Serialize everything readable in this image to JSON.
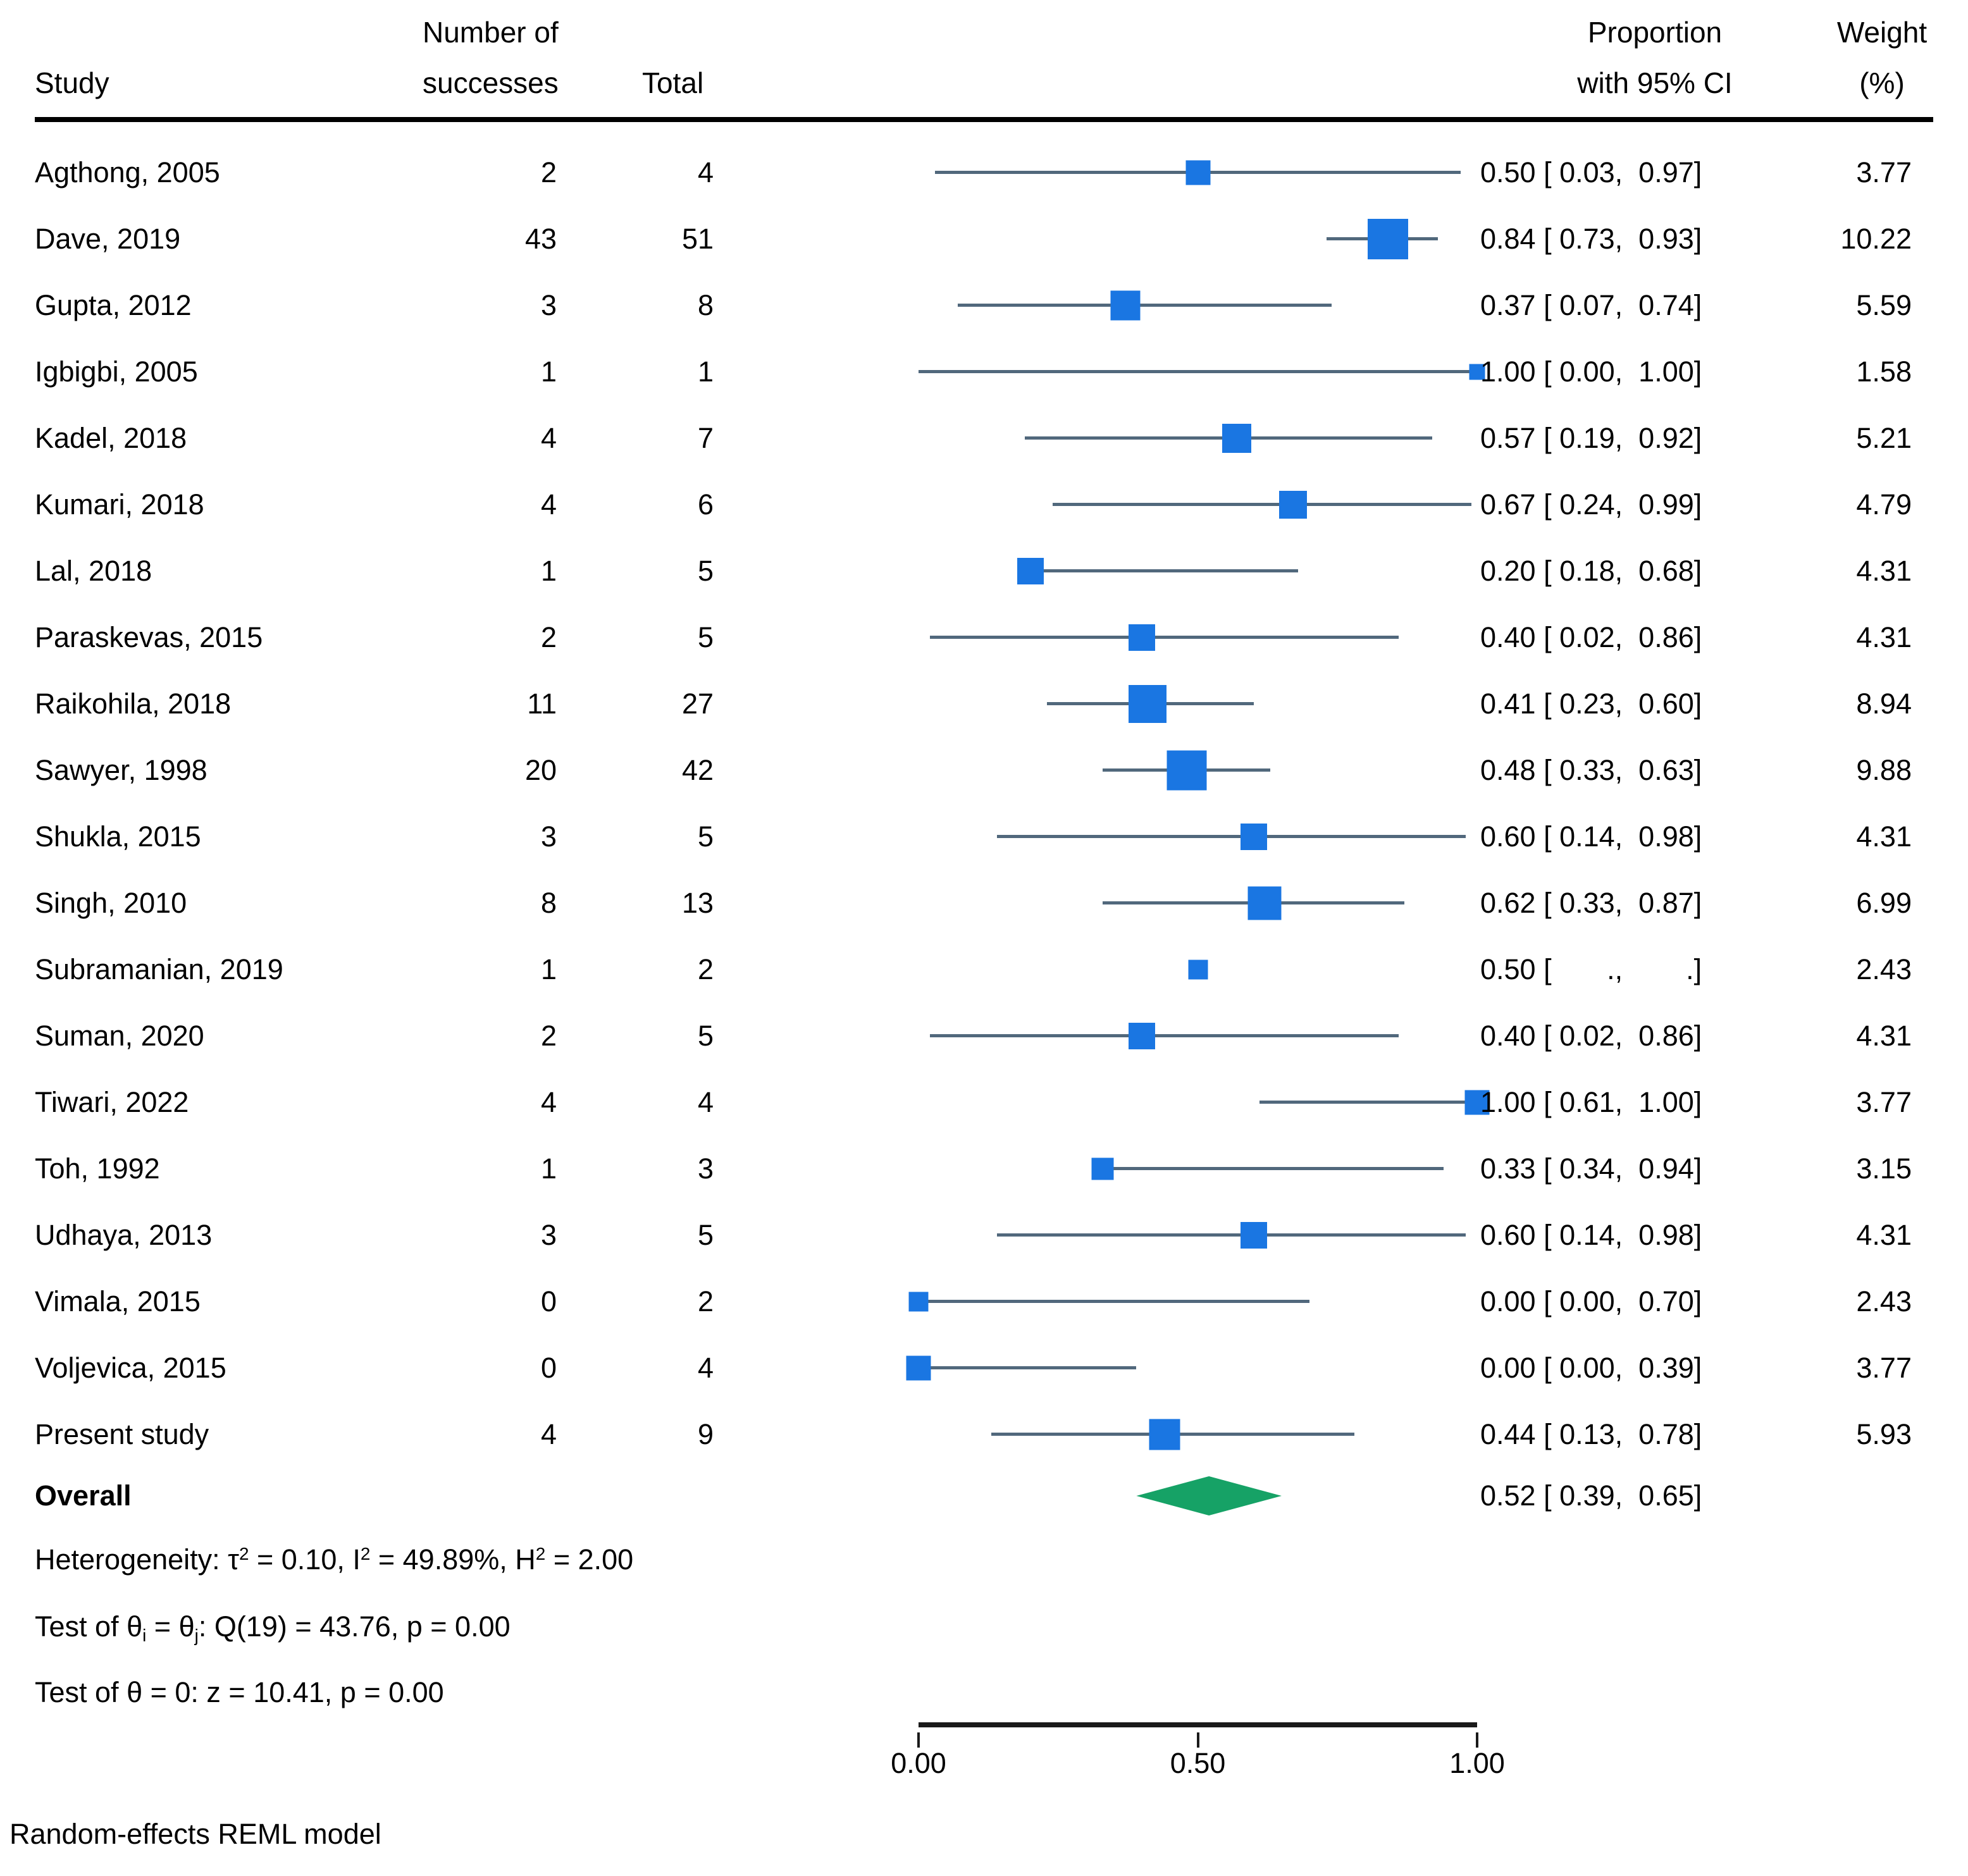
{
  "header": {
    "study": "Study",
    "successes_line1": "Number of",
    "successes_line2": "successes",
    "total": "Total",
    "ci_line1": "Proportion",
    "ci_line2": "with 95% CI",
    "weight_line1": "Weight",
    "weight_line2": "(%)"
  },
  "colors": {
    "marker_blue": "#1a76e2",
    "ci_line": "#51687c",
    "diamond_green": "#16a266",
    "axis": "#1a1a1a",
    "text": "#000000"
  },
  "chart_data": {
    "type": "scatter",
    "variant": "forest-plot",
    "title": "",
    "xlabel": "",
    "xlim": [
      0,
      1
    ],
    "x_ticks": [
      {
        "label": "0.00",
        "pos": 0
      },
      {
        "label": "0.50",
        "pos": 0.5
      },
      {
        "label": "1.00",
        "pos": 1
      }
    ],
    "studies": [
      {
        "study": "Agthong, 2005",
        "successes": 2,
        "total": 4,
        "proportion": 0.5,
        "ci_low": 0.03,
        "ci_high": 0.97,
        "weight_pct": 3.77,
        "ci_text": "0.50 [ 0.03,  0.97]",
        "weight_text": "3.77"
      },
      {
        "study": "Dave, 2019",
        "successes": 43,
        "total": 51,
        "proportion": 0.84,
        "ci_low": 0.73,
        "ci_high": 0.93,
        "weight_pct": 10.22,
        "ci_text": "0.84 [ 0.73,  0.93]",
        "weight_text": "10.22"
      },
      {
        "study": "Gupta, 2012",
        "successes": 3,
        "total": 8,
        "proportion": 0.37,
        "ci_low": 0.07,
        "ci_high": 0.74,
        "weight_pct": 5.59,
        "ci_text": "0.37 [ 0.07,  0.74]",
        "weight_text": "5.59"
      },
      {
        "study": "Igbigbi, 2005",
        "successes": 1,
        "total": 1,
        "proportion": 1.0,
        "ci_low": 0.0,
        "ci_high": 1.0,
        "weight_pct": 1.58,
        "ci_text": "1.00 [ 0.00,  1.00]",
        "weight_text": "1.58"
      },
      {
        "study": "Kadel, 2018",
        "successes": 4,
        "total": 7,
        "proportion": 0.57,
        "ci_low": 0.19,
        "ci_high": 0.92,
        "weight_pct": 5.21,
        "ci_text": "0.57 [ 0.19,  0.92]",
        "weight_text": "5.21"
      },
      {
        "study": "Kumari, 2018",
        "successes": 4,
        "total": 6,
        "proportion": 0.67,
        "ci_low": 0.24,
        "ci_high": 0.99,
        "weight_pct": 4.79,
        "ci_text": "0.67 [ 0.24,  0.99]",
        "weight_text": "4.79"
      },
      {
        "study": "Lal, 2018",
        "successes": 1,
        "total": 5,
        "proportion": 0.2,
        "ci_low": 0.18,
        "ci_high": 0.68,
        "weight_pct": 4.31,
        "ci_text": "0.20 [ 0.18,  0.68]",
        "weight_text": "4.31"
      },
      {
        "study": "Paraskevas, 2015",
        "successes": 2,
        "total": 5,
        "proportion": 0.4,
        "ci_low": 0.02,
        "ci_high": 0.86,
        "weight_pct": 4.31,
        "ci_text": "0.40 [ 0.02,  0.86]",
        "weight_text": "4.31"
      },
      {
        "study": "Raikohila, 2018",
        "successes": 11,
        "total": 27,
        "proportion": 0.41,
        "ci_low": 0.23,
        "ci_high": 0.6,
        "weight_pct": 8.94,
        "ci_text": "0.41 [ 0.23,  0.60]",
        "weight_text": "8.94"
      },
      {
        "study": "Sawyer, 1998",
        "successes": 20,
        "total": 42,
        "proportion": 0.48,
        "ci_low": 0.33,
        "ci_high": 0.63,
        "weight_pct": 9.88,
        "ci_text": "0.48 [ 0.33,  0.63]",
        "weight_text": "9.88"
      },
      {
        "study": "Shukla, 2015",
        "successes": 3,
        "total": 5,
        "proportion": 0.6,
        "ci_low": 0.14,
        "ci_high": 0.98,
        "weight_pct": 4.31,
        "ci_text": "0.60 [ 0.14,  0.98]",
        "weight_text": "4.31"
      },
      {
        "study": "Singh, 2010",
        "successes": 8,
        "total": 13,
        "proportion": 0.62,
        "ci_low": 0.33,
        "ci_high": 0.87,
        "weight_pct": 6.99,
        "ci_text": "0.62 [ 0.33,  0.87]",
        "weight_text": "6.99"
      },
      {
        "study": "Subramanian, 2019",
        "successes": 1,
        "total": 2,
        "proportion": 0.5,
        "ci_low": null,
        "ci_high": null,
        "weight_pct": 2.43,
        "ci_text": "0.50 [       .,        .]",
        "weight_text": "2.43"
      },
      {
        "study": "Suman, 2020",
        "successes": 2,
        "total": 5,
        "proportion": 0.4,
        "ci_low": 0.02,
        "ci_high": 0.86,
        "weight_pct": 4.31,
        "ci_text": "0.40 [ 0.02,  0.86]",
        "weight_text": "4.31"
      },
      {
        "study": "Tiwari, 2022",
        "successes": 4,
        "total": 4,
        "proportion": 1.0,
        "ci_low": 0.61,
        "ci_high": 1.0,
        "weight_pct": 3.77,
        "ci_text": "1.00 [ 0.61,  1.00]",
        "weight_text": "3.77"
      },
      {
        "study": "Toh, 1992",
        "successes": 1,
        "total": 3,
        "proportion": 0.33,
        "ci_low": 0.34,
        "ci_high": 0.94,
        "weight_pct": 3.15,
        "ci_text": "0.33 [ 0.34,  0.94]",
        "weight_text": "3.15"
      },
      {
        "study": "Udhaya, 2013",
        "successes": 3,
        "total": 5,
        "proportion": 0.6,
        "ci_low": 0.14,
        "ci_high": 0.98,
        "weight_pct": 4.31,
        "ci_text": "0.60 [ 0.14,  0.98]",
        "weight_text": "4.31"
      },
      {
        "study": "Vimala, 2015",
        "successes": 0,
        "total": 2,
        "proportion": 0.0,
        "ci_low": 0.0,
        "ci_high": 0.7,
        "weight_pct": 2.43,
        "ci_text": "0.00 [ 0.00,  0.70]",
        "weight_text": "2.43"
      },
      {
        "study": "Voljevica, 2015",
        "successes": 0,
        "total": 4,
        "proportion": 0.0,
        "ci_low": 0.0,
        "ci_high": 0.39,
        "weight_pct": 3.77,
        "ci_text": "0.00 [ 0.00,  0.39]",
        "weight_text": "3.77"
      },
      {
        "study": "Present study",
        "successes": 4,
        "total": 9,
        "proportion": 0.44,
        "ci_low": 0.13,
        "ci_high": 0.78,
        "weight_pct": 5.93,
        "ci_text": "0.44 [ 0.13,  0.78]",
        "weight_text": "5.93"
      }
    ],
    "overall": {
      "label": "Overall",
      "proportion": 0.52,
      "ci_low": 0.39,
      "ci_high": 0.65,
      "ci_text": "0.52 [ 0.39,  0.65]"
    },
    "legend": null,
    "grid": false
  },
  "stats": {
    "lines": [
      {
        "segments": [
          {
            "t": "Heterogeneity: τ",
            "s": "n"
          },
          {
            "t": "2",
            "s": "sup"
          },
          {
            "t": " = 0.10, I",
            "s": "n"
          },
          {
            "t": "2",
            "s": "sup"
          },
          {
            "t": " = 49.89%, H",
            "s": "n"
          },
          {
            "t": "2",
            "s": "sup"
          },
          {
            "t": " = 2.00",
            "s": "n"
          }
        ]
      },
      {
        "segments": [
          {
            "t": "Test of θ",
            "s": "n"
          },
          {
            "t": "i",
            "s": "sub"
          },
          {
            "t": " = θ",
            "s": "n"
          },
          {
            "t": "j",
            "s": "sub"
          },
          {
            "t": ": Q(19) = 43.76, p = 0.00",
            "s": "n"
          }
        ]
      },
      {
        "segments": [
          {
            "t": "Test of θ = 0: z = 10.41, p = 0.00",
            "s": "n"
          }
        ]
      }
    ]
  },
  "footer": {
    "model_note": "Random-effects REML model"
  }
}
